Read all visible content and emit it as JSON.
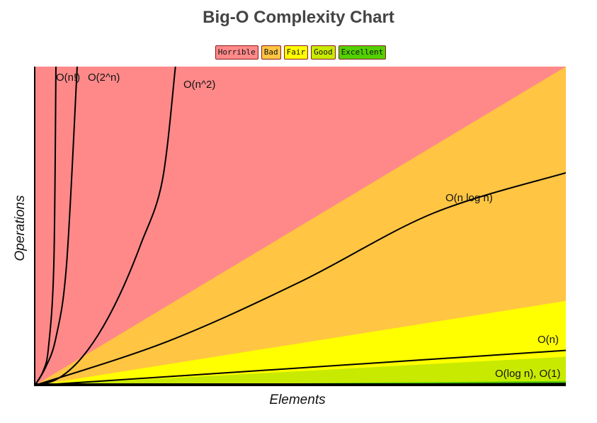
{
  "chart_data": {
    "type": "line",
    "title": "Big-O Complexity Chart",
    "xlabel": "Elements",
    "ylabel": "Operations",
    "grid": false,
    "legend_placement": "top-center",
    "legend": [
      {
        "label": "Horrible",
        "color": "#ff8989"
      },
      {
        "label": "Bad",
        "color": "#ffc543"
      },
      {
        "label": "Fair",
        "color": "#ffff00"
      },
      {
        "label": "Good",
        "color": "#c8ea00"
      },
      {
        "label": "Excellent",
        "color": "#53d000"
      }
    ],
    "xlim": [
      0,
      100
    ],
    "ylim": [
      0,
      100
    ],
    "regions": [
      {
        "legend": "Excellent",
        "color": "#53d000",
        "top_y_at_xmax": 1.4
      },
      {
        "legend": "Good",
        "color": "#c8ea00",
        "top_y_at_xmax": 9
      },
      {
        "legend": "Fair",
        "color": "#ffff00",
        "top_y_at_xmax": 26.5
      },
      {
        "legend": "Bad",
        "color": "#ffc543",
        "top_y_at_xmax": 100
      },
      {
        "legend": "Horrible",
        "color": "#ff8989",
        "top_y_at_xmax": 100
      }
    ],
    "series": [
      {
        "name": "O(log n), O(1)",
        "points": [
          [
            0,
            0
          ],
          [
            100,
            0.6
          ]
        ]
      },
      {
        "name": "O(n)",
        "points": [
          [
            0,
            0
          ],
          [
            100,
            11
          ]
        ]
      },
      {
        "name": "O(n log n)",
        "points": [
          [
            0,
            0
          ],
          [
            25,
            13.8
          ],
          [
            50,
            32.5
          ],
          [
            75,
            54
          ],
          [
            100,
            66.7
          ]
        ]
      },
      {
        "name": "O(n^2)",
        "points": [
          [
            0,
            0
          ],
          [
            4,
            1.8
          ],
          [
            8,
            7.1
          ],
          [
            12,
            16
          ],
          [
            16,
            28.4
          ],
          [
            20,
            44.4
          ],
          [
            24,
            64
          ],
          [
            26.5,
            100
          ]
        ]
      },
      {
        "name": "O(2^n)",
        "points": [
          [
            0,
            0
          ],
          [
            2,
            5.5
          ],
          [
            4,
            15
          ],
          [
            6,
            38
          ],
          [
            8,
            100
          ]
        ]
      },
      {
        "name": "O(n!)",
        "points": [
          [
            0,
            0
          ],
          [
            1.6,
            4.5
          ],
          [
            2.6,
            12
          ],
          [
            3.6,
            38
          ],
          [
            4,
            100
          ]
        ]
      }
    ]
  }
}
